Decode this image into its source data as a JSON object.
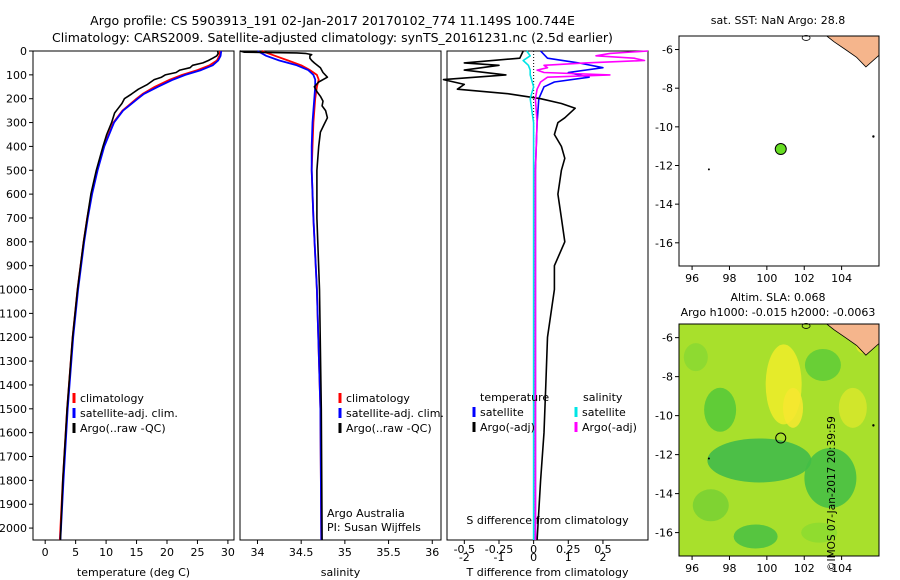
{
  "header": {
    "line1": "Argo profile: CS 5903913_191 02-Jan-2017 20170102_774 11.149S 100.744E",
    "line2": "Climatology: CARS2009. Satellite-adjusted climatology: synTS_20161231.nc (2.5d earlier)"
  },
  "colors": {
    "climatology": "#ff0000",
    "satellite": "#0000ff",
    "argo": "#000000",
    "satellite_salinity": "#00e5e5",
    "argo_salinity": "#ff00ff",
    "float_marker": "#66dd22",
    "land": "#f5b58c"
  },
  "chart_data": [
    {
      "type": "line",
      "id": "temperature",
      "xlabel": "temperature (deg C)",
      "xlim": [
        -2,
        31
      ],
      "ylim": [
        2050,
        0
      ],
      "xticks": [
        0,
        5,
        10,
        15,
        20,
        25,
        30
      ],
      "yticks": [
        0,
        100,
        200,
        300,
        400,
        500,
        600,
        700,
        800,
        900,
        1000,
        1100,
        1200,
        1300,
        1400,
        1500,
        1600,
        1700,
        1800,
        1900,
        2000
      ],
      "legend": [
        "climatology",
        "satellite-adj. clim.",
        "Argo(..raw -QC)"
      ],
      "series": [
        {
          "name": "climatology",
          "color": "#ff0000",
          "depth": [
            0,
            20,
            40,
            60,
            80,
            100,
            120,
            150,
            180,
            200,
            250,
            300,
            400,
            500,
            600,
            700,
            800,
            1000,
            1200,
            1500,
            1800,
            2050
          ],
          "values": [
            28.7,
            28.6,
            28.2,
            27.0,
            25.0,
            22.5,
            20.5,
            18.0,
            16.0,
            15.0,
            12.7,
            11.2,
            9.6,
            8.5,
            7.6,
            6.9,
            6.3,
            5.3,
            4.5,
            3.6,
            2.9,
            2.4
          ]
        },
        {
          "name": "satellite-adj. clim.",
          "color": "#0000ff",
          "depth": [
            0,
            20,
            40,
            60,
            80,
            100,
            120,
            150,
            180,
            200,
            250,
            300,
            400,
            500,
            600,
            700,
            800,
            1000,
            1200,
            1500,
            1800,
            2050
          ],
          "values": [
            28.9,
            28.8,
            28.4,
            27.5,
            25.6,
            23.0,
            21.0,
            18.5,
            16.2,
            15.2,
            12.8,
            11.3,
            9.7,
            8.6,
            7.7,
            7.0,
            6.4,
            5.4,
            4.6,
            3.7,
            3.0,
            2.5
          ]
        },
        {
          "name": "Argo(..raw -QC)",
          "color": "#000000",
          "depth": [
            0,
            10,
            20,
            30,
            40,
            50,
            60,
            70,
            80,
            90,
            100,
            110,
            120,
            140,
            160,
            180,
            200,
            220,
            240,
            260,
            300,
            350,
            400,
            500,
            600,
            700,
            800,
            900,
            1000,
            1200,
            1500,
            1800,
            2050
          ],
          "values": [
            28.3,
            28.4,
            28.2,
            27.5,
            26.8,
            25.9,
            24.2,
            23.8,
            22.1,
            21.5,
            19.7,
            19.1,
            17.9,
            16.8,
            15.3,
            14.2,
            13.0,
            12.6,
            12.0,
            11.4,
            10.9,
            10.1,
            9.5,
            8.4,
            7.5,
            6.9,
            6.3,
            5.8,
            5.3,
            4.5,
            3.6,
            2.9,
            2.5
          ]
        }
      ]
    },
    {
      "type": "line",
      "id": "salinity",
      "xlabel": "salinity",
      "xlim": [
        33.8,
        36.1
      ],
      "ylim": [
        2050,
        0
      ],
      "xticks": [
        34,
        34.5,
        35,
        35.5,
        36
      ],
      "legend": [
        "climatology",
        "satellite-adj. clim.",
        "Argo(..raw -QC)"
      ],
      "annotations": [
        "Argo Australia",
        "PI: Susan Wijffels"
      ],
      "series": [
        {
          "name": "climatology",
          "color": "#ff0000",
          "depth": [
            0,
            20,
            40,
            60,
            80,
            100,
            120,
            150,
            200,
            250,
            300,
            400,
            500,
            700,
            1000,
            1500,
            2050
          ],
          "values": [
            34.05,
            34.2,
            34.35,
            34.5,
            34.6,
            34.68,
            34.7,
            34.68,
            34.66,
            34.65,
            34.64,
            34.63,
            34.62,
            34.64,
            34.68,
            34.72,
            34.73
          ]
        },
        {
          "name": "satellite-adj. clim.",
          "color": "#0000ff",
          "depth": [
            0,
            20,
            40,
            60,
            80,
            100,
            120,
            150,
            200,
            250,
            300,
            400,
            500,
            700,
            1000,
            1500,
            2050
          ],
          "values": [
            34.0,
            34.1,
            34.25,
            34.45,
            34.58,
            34.64,
            34.66,
            34.66,
            34.65,
            34.64,
            34.63,
            34.62,
            34.62,
            34.64,
            34.68,
            34.72,
            34.73
          ]
        },
        {
          "name": "Argo(..raw -QC)",
          "color": "#000000",
          "depth": [
            0,
            5,
            8,
            10,
            15,
            20,
            30,
            40,
            50,
            70,
            90,
            110,
            130,
            150,
            170,
            190,
            210,
            230,
            250,
            280,
            310,
            340,
            400,
            500,
            700,
            1000,
            1500,
            2050
          ],
          "values": [
            33.8,
            33.85,
            34.45,
            34.55,
            34.62,
            34.6,
            34.6,
            34.62,
            34.65,
            34.72,
            34.75,
            34.8,
            34.7,
            34.65,
            34.68,
            34.72,
            34.75,
            34.74,
            34.78,
            34.8,
            34.76,
            34.72,
            34.7,
            34.68,
            34.68,
            34.71,
            34.73,
            34.74
          ]
        }
      ]
    },
    {
      "type": "line",
      "id": "differences",
      "xlabel_top": "S difference from climatology",
      "xlabel": "T difference from climatology",
      "xlim": [
        -2.5,
        3.3
      ],
      "ylim": [
        2050,
        0
      ],
      "xticks": [
        -2,
        -1,
        0,
        1,
        2
      ],
      "xticks_s": [
        "-0.5",
        "-0.25",
        "0",
        "0.25",
        "0.5"
      ],
      "legend_t": {
        "title": "temperature",
        "items": [
          "satellite",
          "Argo(-adj)"
        ]
      },
      "legend_s": {
        "title": "salinity",
        "items": [
          "satellite",
          "Argo(-adj)"
        ]
      },
      "series": [
        {
          "name": "temperature satellite",
          "color": "#0000ff",
          "depth": [
            0,
            30,
            50,
            70,
            90,
            110,
            130,
            150,
            200,
            300,
            500,
            1000,
            1500,
            2050
          ],
          "values": [
            0.2,
            0.4,
            1.3,
            2.0,
            1.0,
            1.6,
            0.6,
            0.3,
            0.15,
            0.1,
            0.05,
            0.05,
            0.05,
            0.05
          ]
        },
        {
          "name": "temperature Argo(-adj)",
          "color": "#000000",
          "depth": [
            0,
            30,
            50,
            60,
            70,
            80,
            100,
            120,
            140,
            160,
            180,
            200,
            220,
            240,
            280,
            300,
            350,
            400,
            450,
            500,
            600,
            700,
            800,
            900,
            1000,
            1200,
            1400,
            1600,
            1800,
            2050
          ],
          "values": [
            -0.3,
            -0.4,
            -2.0,
            -1.0,
            -1.5,
            -2.0,
            -0.8,
            -2.6,
            -2.0,
            -2.2,
            -0.7,
            0.2,
            0.8,
            1.2,
            0.9,
            0.7,
            0.6,
            0.8,
            0.9,
            0.8,
            0.7,
            0.8,
            0.9,
            0.6,
            0.6,
            0.4,
            0.35,
            0.3,
            0.2,
            0.1
          ]
        },
        {
          "name": "salinity satellite",
          "color": "#00e5e5",
          "depth": [
            0,
            20,
            40,
            60,
            80,
            100,
            150,
            200,
            300,
            500,
            1000,
            1500,
            2050
          ],
          "values": [
            -0.2,
            -0.1,
            -0.3,
            -0.15,
            -0.1,
            -0.1,
            0.0,
            -0.1,
            0.0,
            0.0,
            0.0,
            0.0,
            0.0
          ]
        },
        {
          "name": "salinity Argo(-adj)",
          "color": "#ff00ff",
          "depth": [
            0,
            10,
            20,
            30,
            40,
            50,
            60,
            70,
            80,
            90,
            100,
            110,
            130,
            160,
            200,
            300,
            500,
            1000,
            1500,
            2050
          ],
          "values": [
            3.3,
            2.2,
            1.8,
            2.9,
            3.2,
            1.5,
            0.3,
            0.4,
            0.1,
            0.3,
            2.2,
            0.4,
            0.2,
            0.1,
            0.05,
            0.1,
            0.05,
            0.05,
            0.05,
            0.05
          ]
        }
      ]
    },
    {
      "type": "scatter",
      "id": "sst-map",
      "title": "sat. SST: NaN Argo: 28.8",
      "xlim": [
        95.3,
        106.0
      ],
      "ylim": [
        -17.2,
        -5.3
      ],
      "xticks": [
        96,
        98,
        100,
        102,
        104
      ],
      "yticks": [
        -6,
        -8,
        -10,
        -12,
        -14,
        -16
      ],
      "points": [
        {
          "x": 100.744,
          "y": -11.149
        }
      ]
    },
    {
      "type": "heatmap",
      "id": "sla-map",
      "title": "Altim. SLA: 0.068",
      "subtitle": "Argo h1000: -0.015 h2000: -0.0063",
      "xlim": [
        95.3,
        106.0
      ],
      "ylim": [
        -17.2,
        -5.3
      ],
      "xticks": [
        96,
        98,
        100,
        102,
        104
      ],
      "yticks": [
        -6,
        -8,
        -10,
        -12,
        -14,
        -16
      ],
      "points": [
        {
          "x": 100.744,
          "y": -11.149
        }
      ]
    }
  ],
  "stamp": "©IMOS 07-Jan-2017 20:39:59"
}
